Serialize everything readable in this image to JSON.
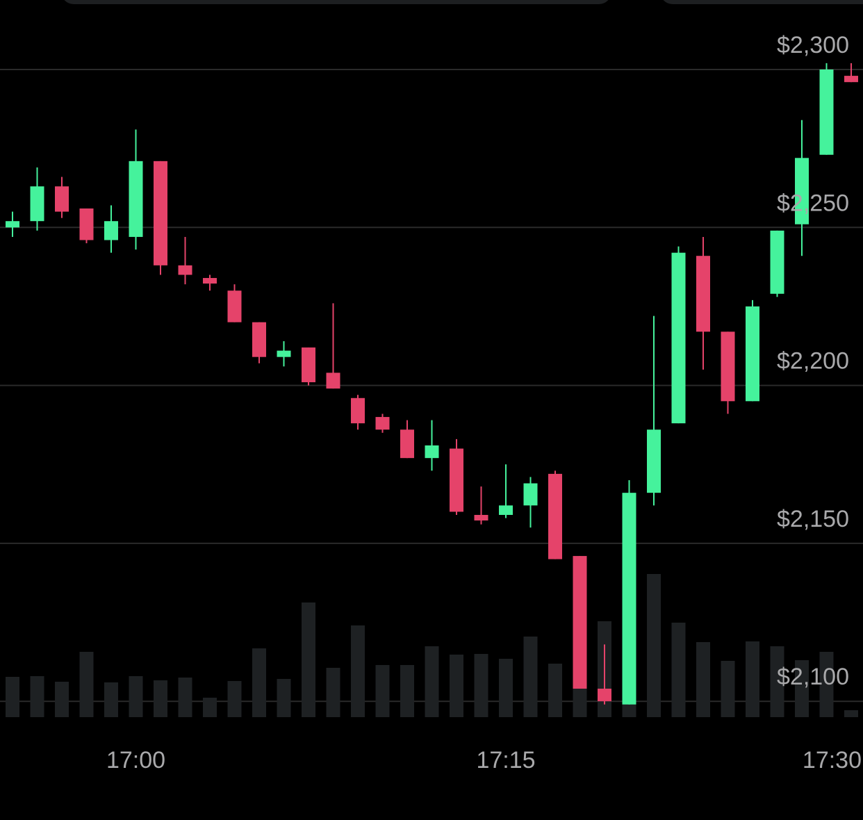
{
  "tabs": {
    "left_label": "",
    "right_label": ""
  },
  "colors": {
    "background": "#000000",
    "up": "#45f29c",
    "down": "#e5436a",
    "volume": "#1e2123",
    "grid": "#2a2a2a",
    "label": "#a9a9ab"
  },
  "chart_data": {
    "type": "candlestick",
    "title": "",
    "ylim": [
      2080,
      2311
    ],
    "y_ticks": [
      {
        "value": 2300,
        "label": "$2,300"
      },
      {
        "value": 2250,
        "label": "$2,250"
      },
      {
        "value": 2200,
        "label": "$2,200"
      },
      {
        "value": 2150,
        "label": "$2,150"
      },
      {
        "value": 2100,
        "label": "$2,100"
      }
    ],
    "x_ticks": [
      {
        "index": 5,
        "label": "17:00"
      },
      {
        "index": 20,
        "label": "17:15"
      },
      {
        "index": 35,
        "label": "17:30"
      }
    ],
    "grid": true,
    "candles": [
      {
        "o": 2250,
        "c": 2252,
        "h": 2255,
        "l": 2247,
        "v": 58
      },
      {
        "o": 2252,
        "c": 2263,
        "h": 2269,
        "l": 2249,
        "v": 59
      },
      {
        "o": 2263,
        "c": 2255,
        "h": 2266,
        "l": 2253,
        "v": 51
      },
      {
        "o": 2256,
        "c": 2246,
        "h": 2256,
        "l": 2245,
        "v": 94
      },
      {
        "o": 2246,
        "c": 2252,
        "h": 2257,
        "l": 2242,
        "v": 50
      },
      {
        "o": 2247,
        "c": 2271,
        "h": 2281,
        "l": 2243,
        "v": 59
      },
      {
        "o": 2271,
        "c": 2238,
        "h": 2271,
        "l": 2235,
        "v": 53
      },
      {
        "o": 2238,
        "c": 2235,
        "h": 2247,
        "l": 2232,
        "v": 57
      },
      {
        "o": 2234,
        "c": 2233,
        "h": 2235,
        "l": 2230,
        "v": 28
      },
      {
        "o": 2230,
        "c": 2220,
        "h": 2232,
        "l": 2220,
        "v": 52
      },
      {
        "o": 2220,
        "c": 2209,
        "h": 2220,
        "l": 2207,
        "v": 99
      },
      {
        "o": 2209,
        "c": 2211,
        "h": 2214,
        "l": 2206,
        "v": 55
      },
      {
        "o": 2212,
        "c": 2201,
        "h": 2212,
        "l": 2200,
        "v": 165
      },
      {
        "o": 2204,
        "c": 2199,
        "h": 2226,
        "l": 2199,
        "v": 71
      },
      {
        "o": 2196,
        "c": 2188,
        "h": 2197,
        "l": 2186,
        "v": 132
      },
      {
        "o": 2190,
        "c": 2186,
        "h": 2191,
        "l": 2185,
        "v": 75
      },
      {
        "o": 2186,
        "c": 2177,
        "h": 2189,
        "l": 2177,
        "v": 75
      },
      {
        "o": 2177,
        "c": 2181,
        "h": 2189,
        "l": 2173,
        "v": 102
      },
      {
        "o": 2180,
        "c": 2160,
        "h": 2183,
        "l": 2159,
        "v": 90
      },
      {
        "o": 2159,
        "c": 2158,
        "h": 2168,
        "l": 2156,
        "v": 91
      },
      {
        "o": 2159,
        "c": 2162,
        "h": 2175,
        "l": 2158,
        "v": 84
      },
      {
        "o": 2162,
        "c": 2169,
        "h": 2171,
        "l": 2155,
        "v": 116
      },
      {
        "o": 2172,
        "c": 2145,
        "h": 2173,
        "l": 2145,
        "v": 77
      },
      {
        "o": 2146,
        "c": 2104,
        "h": 2146,
        "l": 2104,
        "v": 100
      },
      {
        "o": 2104,
        "c": 2100,
        "h": 2118,
        "l": 2099,
        "v": 138
      },
      {
        "o": 2099,
        "c": 2166,
        "h": 2170,
        "l": 2099,
        "v": 120
      },
      {
        "o": 2166,
        "c": 2186,
        "h": 2222,
        "l": 2162,
        "v": 206
      },
      {
        "o": 2188,
        "c": 2242,
        "h": 2244,
        "l": 2188,
        "v": 136
      },
      {
        "o": 2241,
        "c": 2217,
        "h": 2247,
        "l": 2205,
        "v": 108
      },
      {
        "o": 2217,
        "c": 2195,
        "h": 2217,
        "l": 2191,
        "v": 81
      },
      {
        "o": 2195,
        "c": 2225,
        "h": 2227,
        "l": 2195,
        "v": 109
      },
      {
        "o": 2229,
        "c": 2249,
        "h": 2249,
        "l": 2228,
        "v": 102
      },
      {
        "o": 2251,
        "c": 2272,
        "h": 2284,
        "l": 2241,
        "v": 82
      },
      {
        "o": 2273,
        "c": 2300,
        "h": 2302,
        "l": 2273,
        "v": 94
      },
      {
        "o": 2298,
        "c": 2296,
        "h": 2302,
        "l": 2296,
        "v": 10
      }
    ]
  }
}
